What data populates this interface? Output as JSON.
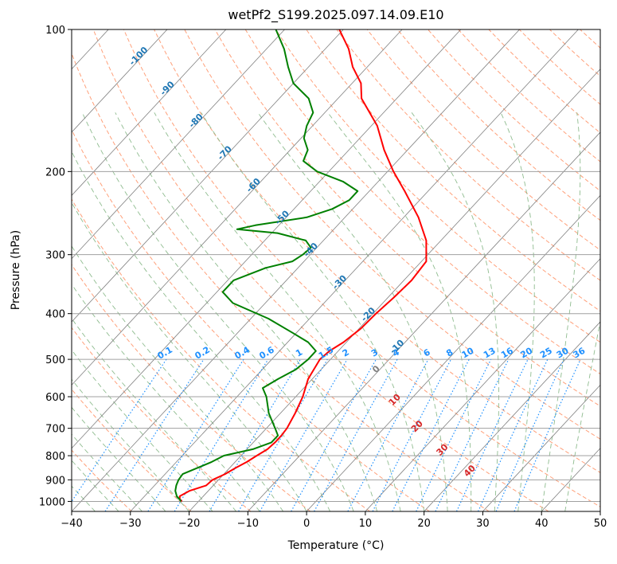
{
  "chart_data": {
    "type": "skew-t log-p",
    "title": "wetPf2_S199.2025.097.14.09.E10",
    "xlabel": "Temperature (°C)",
    "ylabel": "Pressure (hPa)",
    "xlim": [
      -40,
      50
    ],
    "ylim": [
      1050,
      100
    ],
    "y_scale": "log",
    "grid": true,
    "x_ticks": [
      "−40",
      "−30",
      "−20",
      "−10",
      "0",
      "10",
      "20",
      "30",
      "40",
      "50"
    ],
    "x_tick_values": [
      -40,
      -30,
      -20,
      -10,
      0,
      10,
      20,
      30,
      40,
      50
    ],
    "y_ticks": [
      "100",
      "200",
      "300",
      "400",
      "500",
      "600",
      "700",
      "800",
      "900",
      "1000"
    ],
    "y_tick_values": [
      100,
      200,
      300,
      400,
      500,
      600,
      700,
      800,
      900,
      1000
    ],
    "series": [
      {
        "kind": "temperature",
        "color": "#ff0000",
        "points": [
          [
            1000,
            -22.8
          ],
          [
            990,
            -23.5
          ],
          [
            975,
            -24.0
          ],
          [
            950,
            -23.2
          ],
          [
            925,
            -21.2
          ],
          [
            900,
            -21.0
          ],
          [
            875,
            -19.8
          ],
          [
            850,
            -19.0
          ],
          [
            825,
            -18.0
          ],
          [
            800,
            -17.3
          ],
          [
            775,
            -16.5
          ],
          [
            750,
            -16.3
          ],
          [
            725,
            -16.3
          ],
          [
            700,
            -16.5
          ],
          [
            650,
            -17.5
          ],
          [
            600,
            -18.8
          ],
          [
            550,
            -20.7
          ],
          [
            500,
            -21.8
          ],
          [
            480,
            -21.5
          ],
          [
            460,
            -20.5
          ],
          [
            430,
            -19.7
          ],
          [
            400,
            -19.5
          ],
          [
            370,
            -19.0
          ],
          [
            340,
            -18.7
          ],
          [
            310,
            -19.2
          ],
          [
            280,
            -22.5
          ],
          [
            250,
            -27.5
          ],
          [
            220,
            -34.0
          ],
          [
            200,
            -39.0
          ],
          [
            180,
            -44.0
          ],
          [
            160,
            -49.0
          ],
          [
            140,
            -56.0
          ],
          [
            130,
            -58.5
          ],
          [
            120,
            -62.5
          ],
          [
            110,
            -66.0
          ],
          [
            100,
            -70.7
          ]
        ]
      },
      {
        "kind": "dewpoint",
        "color": "#008000",
        "points": [
          [
            1000,
            -23.0
          ],
          [
            990,
            -23.5
          ],
          [
            975,
            -24.5
          ],
          [
            950,
            -25.6
          ],
          [
            925,
            -26.3
          ],
          [
            900,
            -26.8
          ],
          [
            875,
            -27.0
          ],
          [
            850,
            -25.5
          ],
          [
            825,
            -24.0
          ],
          [
            800,
            -22.9
          ],
          [
            775,
            -19.0
          ],
          [
            750,
            -16.9
          ],
          [
            725,
            -16.9
          ],
          [
            700,
            -18.5
          ],
          [
            650,
            -22.0
          ],
          [
            600,
            -25.0
          ],
          [
            575,
            -27.0
          ],
          [
            550,
            -25.8
          ],
          [
            525,
            -24.3
          ],
          [
            500,
            -23.8
          ],
          [
            480,
            -23.8
          ],
          [
            460,
            -26.5
          ],
          [
            440,
            -30.5
          ],
          [
            410,
            -37.0
          ],
          [
            380,
            -45.5
          ],
          [
            360,
            -49.0
          ],
          [
            340,
            -49.0
          ],
          [
            320,
            -45.5
          ],
          [
            310,
            -42.0
          ],
          [
            300,
            -41.3
          ],
          [
            290,
            -41.0
          ],
          [
            280,
            -43.0
          ],
          [
            270,
            -49.0
          ],
          [
            265,
            -56.5
          ],
          [
            260,
            -54.0
          ],
          [
            250,
            -46.5
          ],
          [
            240,
            -43.5
          ],
          [
            230,
            -42.0
          ],
          [
            220,
            -42.0
          ],
          [
            210,
            -46.0
          ],
          [
            200,
            -52.0
          ],
          [
            190,
            -56.0
          ],
          [
            180,
            -57.0
          ],
          [
            170,
            -59.5
          ],
          [
            160,
            -61.0
          ],
          [
            150,
            -62.0
          ],
          [
            140,
            -65.0
          ],
          [
            130,
            -70.0
          ],
          [
            120,
            -73.5
          ],
          [
            110,
            -77.0
          ],
          [
            100,
            -81.5
          ]
        ]
      }
    ],
    "mixing_ratio_labels": [
      "0.1",
      "0.2",
      "0.4",
      "0.6",
      "1",
      "1.5",
      "2",
      "3",
      "4",
      "6",
      "8",
      "10",
      "13",
      "16",
      "20",
      "25",
      "30",
      "36"
    ],
    "mixing_ratio_values": [
      0.1,
      0.2,
      0.4,
      0.6,
      1,
      1.5,
      2,
      3,
      4,
      6,
      8,
      10,
      13,
      16,
      20,
      25,
      30,
      36
    ],
    "moist_adiabat_labels": [
      "0",
      "10",
      "20",
      "30",
      "40"
    ],
    "moist_adiabat_values": [
      0,
      10,
      20,
      30,
      40
    ],
    "dry_adiabat_labels": [
      "-100",
      "-90",
      "-80",
      "-70",
      "-60",
      "-50",
      "-40",
      "-30",
      "-20",
      "-10"
    ],
    "dry_adiabat_values": [
      -100,
      -90,
      -80,
      -70,
      -60,
      -50,
      -40,
      -30,
      -20,
      -10
    ],
    "colors": {
      "isotherm": "#808080",
      "isobar": "#a0a0a0",
      "dry_adiabat": "#ffa07a",
      "moist_adiabat": "#8fbc8f",
      "mixing_ratio": "#1e90ff",
      "dry_adiabat_label": "#1f77b4",
      "moist_adiabat_label": "#d62728",
      "moist_adiabat_zero_label": "#808080",
      "mixing_label": "#1e90ff"
    }
  }
}
